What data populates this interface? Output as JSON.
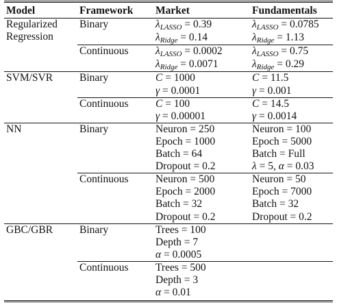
{
  "headers": [
    "Model",
    "Framework",
    "Market",
    "Fundamentals"
  ],
  "rows": [
    {
      "model": "Regularized Regression",
      "framework": "Binary",
      "market": [
        "λLASSO = 0.39",
        "λRidge = 0.14"
      ],
      "fundamentals": [
        "λLASSO = 0.0785",
        "λRidge = 1.13"
      ]
    },
    {
      "model": "",
      "framework": "Continuous",
      "market": [
        "λLASSO = 0.0002",
        "λRidge = 0.0071"
      ],
      "fundamentals": [
        "λLASSO = 0.75",
        "λRidge = 0.29"
      ]
    },
    {
      "model": "SVM/SVR",
      "framework": "Binary",
      "market": [
        "C = 1000",
        "γ = 0.0001"
      ],
      "fundamentals": [
        "C = 11.5",
        "γ = 0.001"
      ]
    },
    {
      "model": "",
      "framework": "Continuous",
      "market": [
        "C = 100",
        "γ = 0.00001"
      ],
      "fundamentals": [
        "C = 14.5",
        "γ = 0.0014"
      ]
    },
    {
      "model": "NN",
      "framework": "Binary",
      "market": [
        "Neuron = 250",
        "Epoch = 1000",
        "Batch = 64",
        "Dropout = 0.2"
      ],
      "fundamentals": [
        "Neuron = 100",
        "Epoch = 5000",
        "Batch = Full",
        "λ = 5, α = 0.03"
      ]
    },
    {
      "model": "",
      "framework": "Continuous",
      "market": [
        "Neuron = 500",
        "Epoch = 2000",
        "Batch = 32",
        "Dropout = 0.2"
      ],
      "fundamentals": [
        "Neuron = 50",
        "Epoch = 7000",
        "Batch = 32",
        "Dropout = 0.2"
      ]
    },
    {
      "model": "GBC/GBR",
      "framework": "Binary",
      "market": [
        "Trees = 100",
        "Depth = 7",
        "α = 0.0005"
      ],
      "fundamentals": []
    },
    {
      "model": "",
      "framework": "Continuous",
      "market": [
        "Trees = 500",
        "Depth = 3",
        "α = 0.01"
      ],
      "fundamentals": []
    }
  ]
}
